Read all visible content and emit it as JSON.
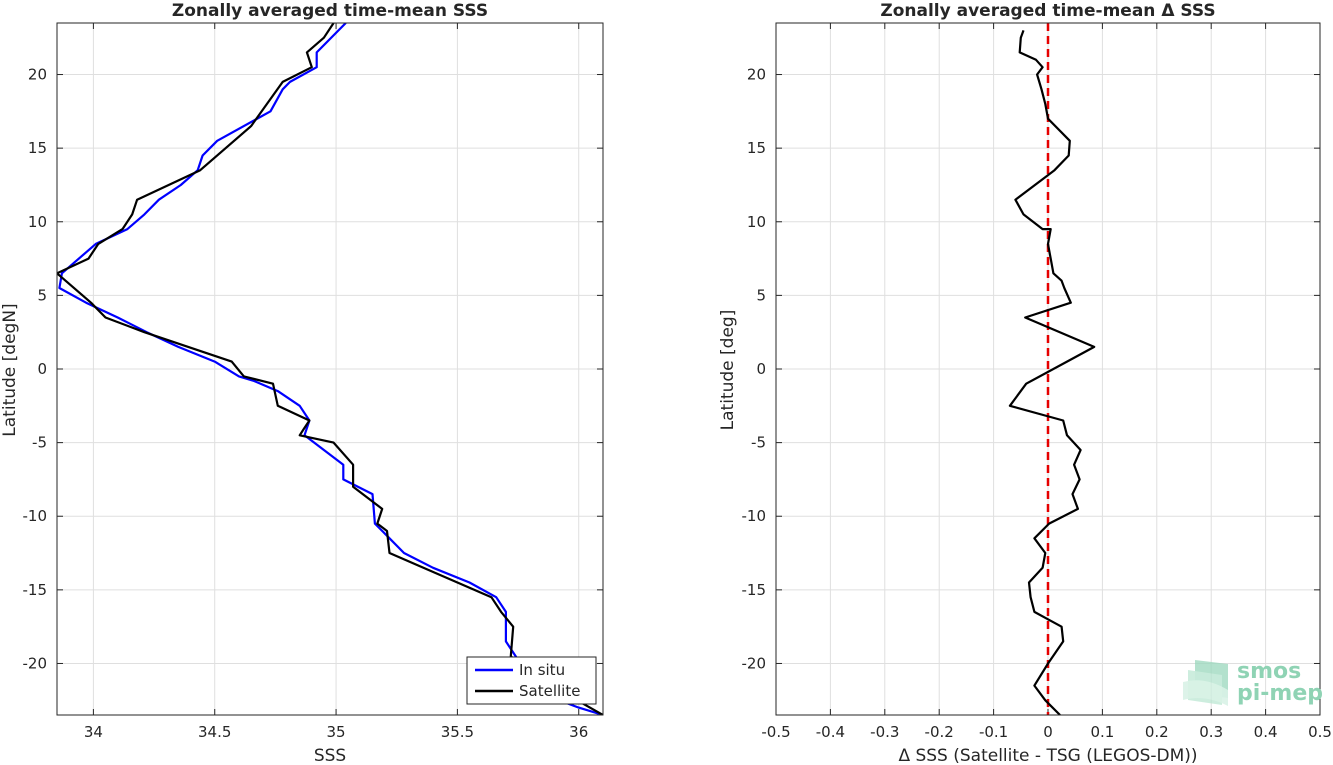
{
  "chart_data": [
    {
      "type": "line",
      "title": "Zonally averaged time-mean SSS",
      "xlabel": "SSS",
      "ylabel": "Latitude [degN]",
      "xlim": [
        33.85,
        36.1
      ],
      "ylim": [
        -23.5,
        23.5
      ],
      "xticks": [
        34,
        34.5,
        35,
        35.5,
        36
      ],
      "xtick_labels": [
        "34",
        "34.5",
        "35",
        "35.5",
        "36"
      ],
      "yticks": [
        -20,
        -15,
        -10,
        -5,
        0,
        5,
        10,
        15,
        20
      ],
      "ytick_labels": [
        "-20",
        "-15",
        "-10",
        "-5",
        "0",
        "5",
        "10",
        "15",
        "20"
      ],
      "grid": true,
      "legend_position": "bottom-right",
      "series": [
        {
          "name": "In situ",
          "color": "#0000ff",
          "points": [
            [
              36.1,
              -23.5
            ],
            [
              36.0,
              -23.0
            ],
            [
              35.92,
              -22.5
            ],
            [
              35.86,
              -21.5
            ],
            [
              35.78,
              -20.5
            ],
            [
              35.74,
              -19.5
            ],
            [
              35.7,
              -18.5
            ],
            [
              35.7,
              -16.5
            ],
            [
              35.66,
              -15.5
            ],
            [
              35.55,
              -14.5
            ],
            [
              35.4,
              -13.5
            ],
            [
              35.28,
              -12.5
            ],
            [
              35.22,
              -11.5
            ],
            [
              35.16,
              -10.5
            ],
            [
              35.15,
              -8.5
            ],
            [
              35.03,
              -7.5
            ],
            [
              35.03,
              -6.5
            ],
            [
              34.95,
              -5.5
            ],
            [
              34.87,
              -4.5
            ],
            [
              34.89,
              -3.5
            ],
            [
              34.85,
              -2.5
            ],
            [
              34.76,
              -1.5
            ],
            [
              34.66,
              -0.8
            ],
            [
              34.6,
              -0.5
            ],
            [
              34.5,
              0.5
            ],
            [
              34.35,
              1.5
            ],
            [
              34.22,
              2.5
            ],
            [
              34.1,
              3.5
            ],
            [
              33.97,
              4.5
            ],
            [
              33.86,
              5.5
            ],
            [
              33.87,
              6.5
            ],
            [
              34.01,
              8.5
            ],
            [
              34.14,
              9.5
            ],
            [
              34.21,
              10.5
            ],
            [
              34.27,
              11.5
            ],
            [
              34.36,
              12.5
            ],
            [
              34.43,
              13.5
            ],
            [
              34.45,
              14.5
            ],
            [
              34.51,
              15.5
            ],
            [
              34.73,
              17.5
            ],
            [
              34.78,
              19.0
            ],
            [
              34.81,
              19.5
            ],
            [
              34.92,
              20.5
            ],
            [
              34.92,
              21.5
            ],
            [
              35.04,
              23.5
            ]
          ]
        },
        {
          "name": "Satellite",
          "color": "#000000",
          "points": [
            [
              36.1,
              -23.5
            ],
            [
              35.78,
              -20.5
            ],
            [
              35.72,
              -19.5
            ],
            [
              35.73,
              -17.5
            ],
            [
              35.68,
              -16.5
            ],
            [
              35.64,
              -15.5
            ],
            [
              35.36,
              -13.5
            ],
            [
              35.22,
              -12.5
            ],
            [
              35.21,
              -11.0
            ],
            [
              35.17,
              -10.5
            ],
            [
              35.19,
              -9.5
            ],
            [
              35.07,
              -8.0
            ],
            [
              35.07,
              -6.5
            ],
            [
              34.99,
              -5.0
            ],
            [
              34.85,
              -4.5
            ],
            [
              34.87,
              -4.0
            ],
            [
              34.89,
              -3.5
            ],
            [
              34.76,
              -2.5
            ],
            [
              34.74,
              -1.0
            ],
            [
              34.62,
              -0.5
            ],
            [
              34.57,
              0.5
            ],
            [
              34.21,
              2.5
            ],
            [
              34.05,
              3.5
            ],
            [
              33.99,
              4.5
            ],
            [
              33.85,
              6.5
            ],
            [
              33.98,
              7.5
            ],
            [
              34.02,
              8.5
            ],
            [
              34.12,
              9.5
            ],
            [
              34.16,
              10.5
            ],
            [
              34.18,
              11.5
            ],
            [
              34.44,
              13.5
            ],
            [
              34.65,
              16.5
            ],
            [
              34.78,
              19.5
            ],
            [
              34.9,
              20.5
            ],
            [
              34.88,
              21.5
            ],
            [
              34.95,
              22.5
            ],
            [
              34.99,
              23.5
            ]
          ]
        }
      ]
    },
    {
      "type": "line",
      "title": "Zonally averaged time-mean Δ SSS",
      "xlabel": "Δ SSS (Satellite - TSG (LEGOS-DM))",
      "ylabel": "Latitude [deg]",
      "xlim": [
        -0.5,
        0.5
      ],
      "ylim": [
        -23.5,
        23.5
      ],
      "xticks": [
        -0.5,
        -0.4,
        -0.3,
        -0.2,
        -0.1,
        0,
        0.1,
        0.2,
        0.3,
        0.4,
        0.5
      ],
      "xtick_labels": [
        "-0.5",
        "-0.4",
        "-0.3",
        "-0.2",
        "-0.1",
        "0",
        "0.1",
        "0.2",
        "0.3",
        "0.4",
        "0.5"
      ],
      "yticks": [
        -20,
        -15,
        -10,
        -5,
        0,
        5,
        10,
        15,
        20
      ],
      "ytick_labels": [
        "-20",
        "-15",
        "-10",
        "-5",
        "0",
        "5",
        "10",
        "15",
        "20"
      ],
      "grid": true,
      "reference_line": {
        "x": 0,
        "color": "#e60000",
        "style": "dashed"
      },
      "series": [
        {
          "color": "#000000",
          "points": [
            [
              -0.045,
              23.0
            ],
            [
              -0.05,
              22.5
            ],
            [
              -0.052,
              21.5
            ],
            [
              -0.022,
              21.0
            ],
            [
              -0.01,
              20.5
            ],
            [
              -0.02,
              20.0
            ],
            [
              -0.012,
              19.0
            ],
            [
              -0.005,
              18.0
            ],
            [
              0.0,
              17.0
            ],
            [
              0.04,
              15.5
            ],
            [
              0.038,
              14.5
            ],
            [
              0.012,
              13.5
            ],
            [
              -0.06,
              11.5
            ],
            [
              -0.045,
              10.5
            ],
            [
              -0.01,
              9.5
            ],
            [
              0.005,
              9.5
            ],
            [
              0.0,
              8.5
            ],
            [
              0.005,
              7.5
            ],
            [
              0.01,
              6.5
            ],
            [
              0.025,
              6.0
            ],
            [
              0.03,
              5.5
            ],
            [
              0.042,
              4.5
            ],
            [
              -0.042,
              3.5
            ],
            [
              0.085,
              1.5
            ],
            [
              0.035,
              0.5
            ],
            [
              -0.04,
              -1.0
            ],
            [
              -0.07,
              -2.5
            ],
            [
              0.028,
              -3.5
            ],
            [
              0.035,
              -4.5
            ],
            [
              0.06,
              -5.5
            ],
            [
              0.048,
              -6.5
            ],
            [
              0.058,
              -7.5
            ],
            [
              0.045,
              -8.5
            ],
            [
              0.055,
              -9.5
            ],
            [
              0.002,
              -10.5
            ],
            [
              -0.025,
              -11.5
            ],
            [
              -0.005,
              -12.5
            ],
            [
              -0.01,
              -13.5
            ],
            [
              -0.035,
              -14.5
            ],
            [
              -0.032,
              -15.5
            ],
            [
              -0.025,
              -16.5
            ],
            [
              0.0,
              -17.0
            ],
            [
              0.025,
              -17.5
            ],
            [
              0.028,
              -18.5
            ],
            [
              0.0,
              -20.0
            ],
            [
              -0.025,
              -21.5
            ],
            [
              -0.005,
              -22.5
            ],
            [
              0.022,
              -23.5
            ]
          ]
        }
      ]
    }
  ],
  "logo": {
    "line1": "smos",
    "line2": "pi-mep"
  }
}
